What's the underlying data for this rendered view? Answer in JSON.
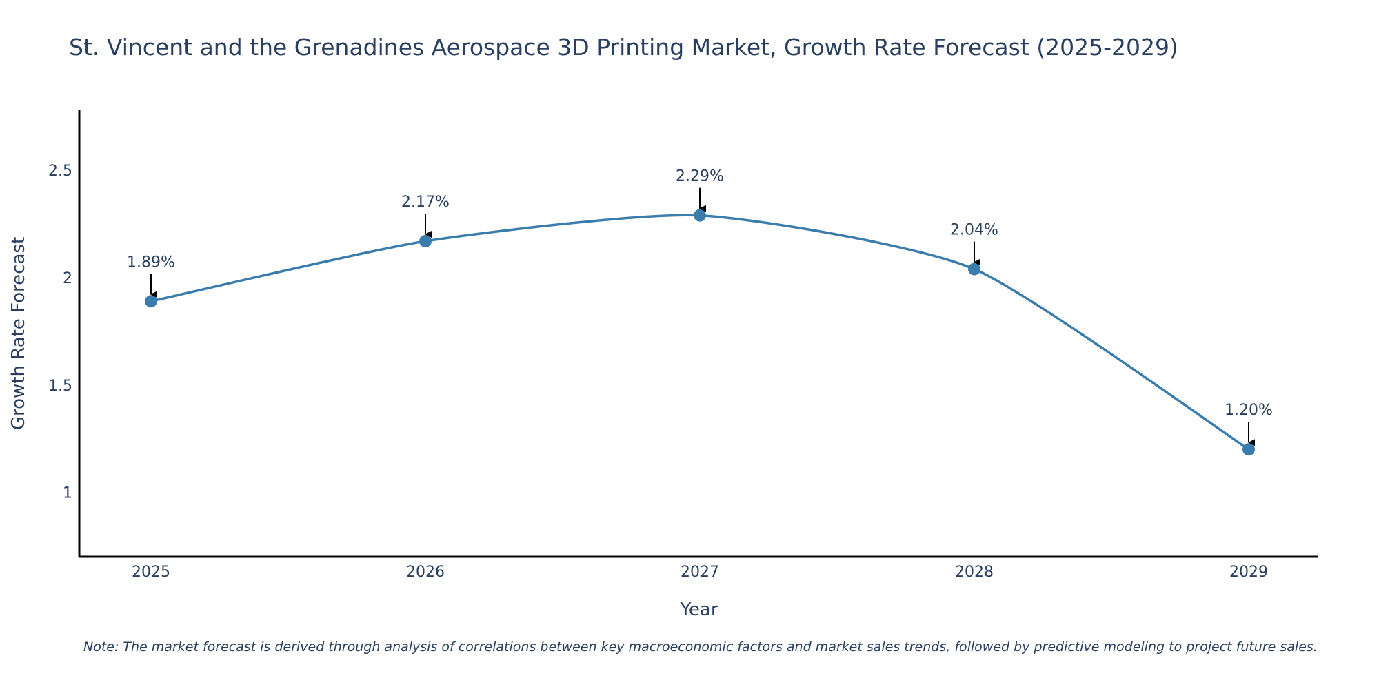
{
  "chart_data": {
    "type": "line",
    "title": "St. Vincent and the Grenadines Aerospace 3D Printing Market, Growth Rate Forecast (2025-2029)",
    "xlabel": "Year",
    "ylabel": "Growth Rate Forecast",
    "x": [
      "2025",
      "2026",
      "2027",
      "2028",
      "2029"
    ],
    "values": [
      1.89,
      2.17,
      2.29,
      2.04,
      1.2
    ],
    "data_labels": [
      "1.89%",
      "2.17%",
      "2.29%",
      "2.04%",
      "1.20%"
    ],
    "yticks": [
      1,
      1.5,
      2,
      2.5
    ],
    "ytick_labels": [
      "1",
      "1.5",
      "2",
      "2.5"
    ],
    "ylim": [
      0.7,
      2.78
    ],
    "grid": false,
    "line_color": "#3a7dad",
    "annotation_arrow_color": "#000000",
    "note": "Note: The market forecast is derived through analysis of correlations between key macroeconomic factors and market sales trends, followed by predictive modeling to project future sales."
  }
}
